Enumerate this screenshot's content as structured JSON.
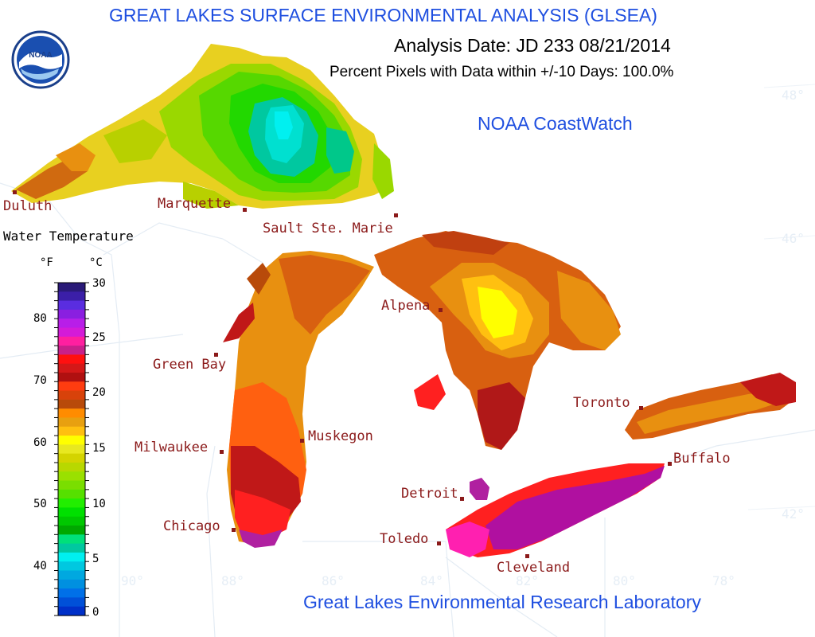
{
  "header": {
    "title": "GREAT LAKES SURFACE ENVIRONMENTAL ANALYSIS (GLSEA)",
    "analysis_date": "Analysis Date:  JD 233 08/21/2014",
    "percent_pixels": "Percent Pixels with Data within +/-10 Days: 100.0%",
    "coastwatch": "NOAA CoastWatch",
    "footer": "Great Lakes Environmental Research Laboratory"
  },
  "logo": {
    "text": "NOAA",
    "icon": "noaa-logo-icon"
  },
  "cities": {
    "duluth": "Duluth",
    "marquette": "Marquette",
    "sault": "Sault Ste. Marie",
    "alpena": "Alpena",
    "green_bay": "Green Bay",
    "toronto": "Toronto",
    "milwaukee": "Milwaukee",
    "muskegon": "Muskegon",
    "buffalo": "Buffalo",
    "detroit": "Detroit",
    "chicago": "Chicago",
    "toledo": "Toledo",
    "cleveland": "Cleveland"
  },
  "graticule": {
    "lat_48": "48°",
    "lat_46": "46°",
    "lat_42": "42°",
    "lon_90": "90°",
    "lon_88": "88°",
    "lon_86": "86°",
    "lon_84": "84°",
    "lon_82": "82°",
    "lon_80": "80°",
    "lon_78": "78°"
  },
  "legend": {
    "title": "Water Temperature",
    "unit_f": "°F",
    "unit_c": "°C",
    "f_ticks": [
      "80",
      "70",
      "60",
      "50",
      "40"
    ],
    "c_ticks": [
      "30",
      "25",
      "20",
      "15",
      "10",
      "5",
      "0"
    ],
    "colors": [
      "#2a1a78",
      "#3b1fa8",
      "#5a2de0",
      "#8a1fe0",
      "#b81ee8",
      "#d41bd8",
      "#ff1fa0",
      "#c8208a",
      "#ff1010",
      "#d41818",
      "#b01010",
      "#ff3c10",
      "#d8420a",
      "#b84a0a",
      "#ff8c00",
      "#e8a010",
      "#ffc010",
      "#ffff00",
      "#e8e820",
      "#d4d400",
      "#b8d800",
      "#9ae000",
      "#7ade00",
      "#56e000",
      "#22ee00",
      "#00e000",
      "#00c800",
      "#00a800",
      "#00e07a",
      "#00c8a0",
      "#00f0f0",
      "#00c8e0",
      "#00a8e0",
      "#0090e0",
      "#0070e8",
      "#0050d8",
      "#0030c8"
    ]
  }
}
